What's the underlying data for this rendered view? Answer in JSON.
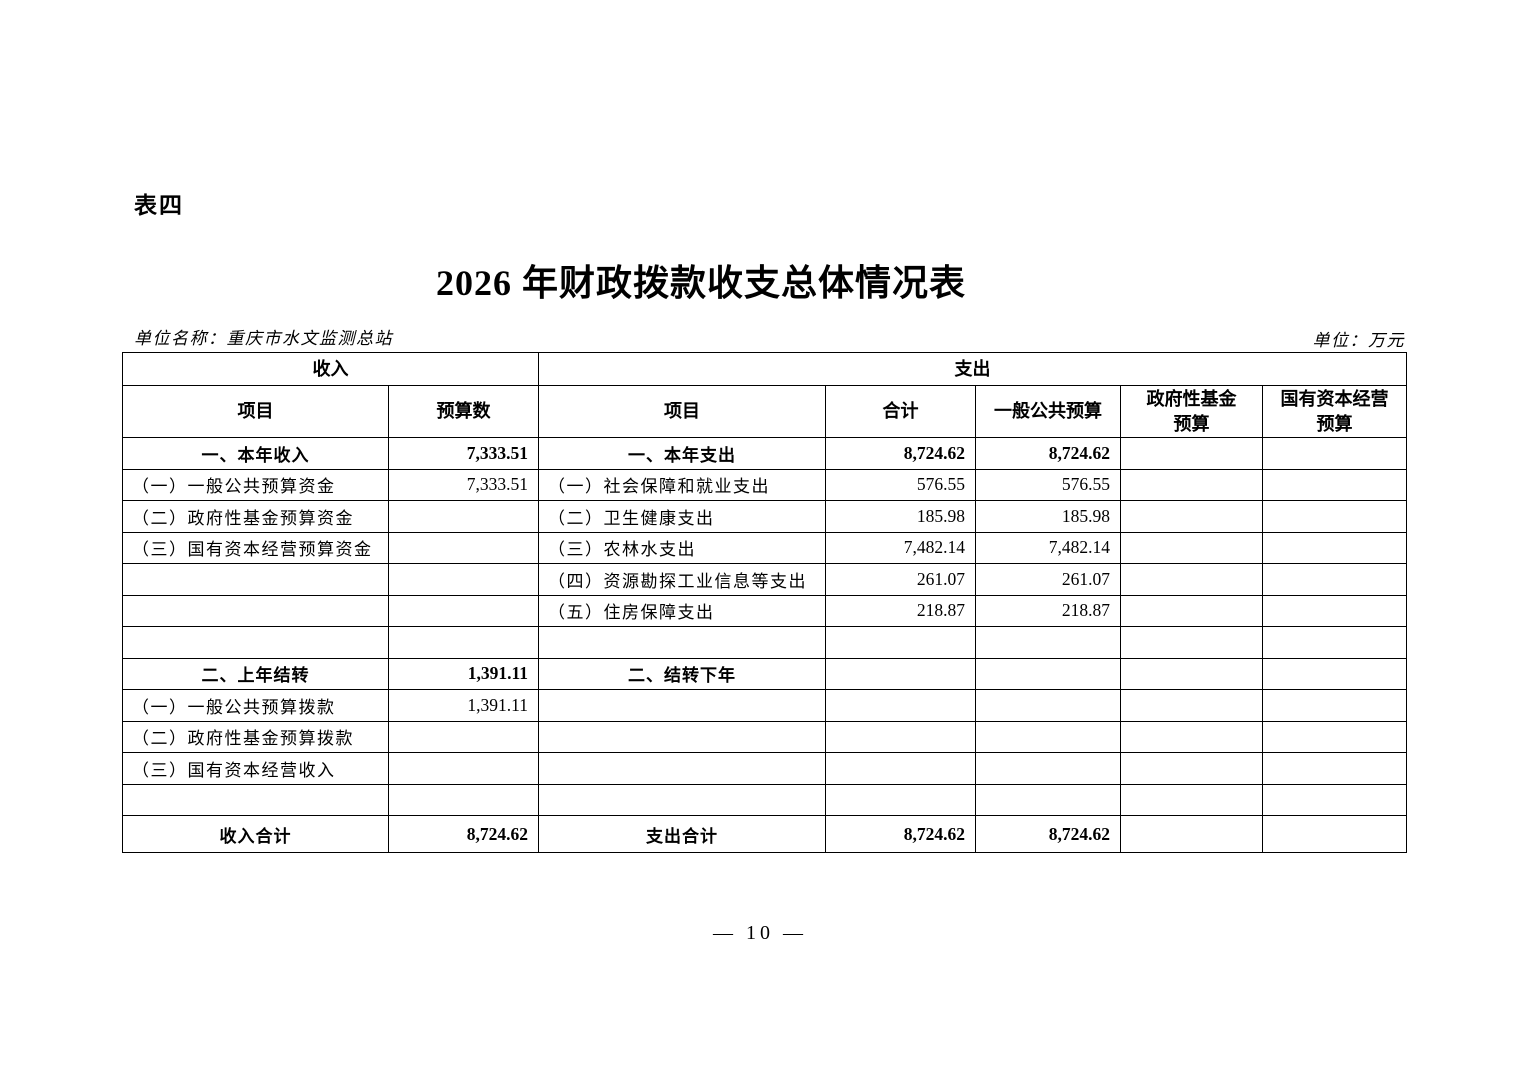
{
  "page": {
    "table_label": "表四",
    "title": "2026 年财政拨款收支总体情况表",
    "unit_name": "单位名称：重庆市水文监测总站",
    "unit": "单位：万元",
    "page_number": "—  10  —"
  },
  "table": {
    "group_headers": {
      "income": "收入",
      "expense": "支出"
    },
    "columns": {
      "income_item": "项目",
      "income_budget": "预算数",
      "expense_item": "项目",
      "expense_total": "合计",
      "general_public_budget": "一般公共预算",
      "gov_fund_budget_line1": "政府性基金",
      "gov_fund_budget_line2": "预算",
      "state_capital_budget_line1": "国有资本经营",
      "state_capital_budget_line2": "预算"
    },
    "rows": [
      {
        "section": true,
        "income_item": "一、本年收入",
        "income_budget": "7,333.51",
        "expense_item": "一、本年支出",
        "expense_total": "8,724.62",
        "general_public": "8,724.62",
        "gov_fund": "",
        "state_capital": ""
      },
      {
        "section": false,
        "income_item": "（一）一般公共预算资金",
        "income_budget": "7,333.51",
        "expense_item": "（一）社会保障和就业支出",
        "expense_total": "576.55",
        "general_public": "576.55",
        "gov_fund": "",
        "state_capital": ""
      },
      {
        "section": false,
        "income_item": "（二）政府性基金预算资金",
        "income_budget": "",
        "expense_item": "（二）卫生健康支出",
        "expense_total": "185.98",
        "general_public": "185.98",
        "gov_fund": "",
        "state_capital": ""
      },
      {
        "section": false,
        "income_item": "（三）国有资本经营预算资金",
        "income_budget": "",
        "expense_item": "（三）农林水支出",
        "expense_total": "7,482.14",
        "general_public": "7,482.14",
        "gov_fund": "",
        "state_capital": ""
      },
      {
        "section": false,
        "income_item": "",
        "income_budget": "",
        "expense_item": "（四）资源勘探工业信息等支出",
        "expense_total": "261.07",
        "general_public": "261.07",
        "gov_fund": "",
        "state_capital": ""
      },
      {
        "section": false,
        "income_item": "",
        "income_budget": "",
        "expense_item": "（五）住房保障支出",
        "expense_total": "218.87",
        "general_public": "218.87",
        "gov_fund": "",
        "state_capital": ""
      },
      {
        "section": false,
        "income_item": "",
        "income_budget": "",
        "expense_item": "",
        "expense_total": "",
        "general_public": "",
        "gov_fund": "",
        "state_capital": ""
      },
      {
        "section": true,
        "income_item": "二、上年结转",
        "income_budget": "1,391.11",
        "expense_item": "二、结转下年",
        "expense_total": "",
        "general_public": "",
        "gov_fund": "",
        "state_capital": ""
      },
      {
        "section": false,
        "income_item": "（一）一般公共预算拨款",
        "income_budget": "1,391.11",
        "expense_item": "",
        "expense_total": "",
        "general_public": "",
        "gov_fund": "",
        "state_capital": ""
      },
      {
        "section": false,
        "income_item": "（二）政府性基金预算拨款",
        "income_budget": "",
        "expense_item": "",
        "expense_total": "",
        "general_public": "",
        "gov_fund": "",
        "state_capital": ""
      },
      {
        "section": false,
        "income_item": "（三）国有资本经营收入",
        "income_budget": "",
        "expense_item": "",
        "expense_total": "",
        "general_public": "",
        "gov_fund": "",
        "state_capital": ""
      },
      {
        "section": false,
        "income_item": "",
        "income_budget": "",
        "expense_item": "",
        "expense_total": "",
        "general_public": "",
        "gov_fund": "",
        "state_capital": ""
      },
      {
        "section": true,
        "income_item": "收入合计",
        "income_budget": "8,724.62",
        "expense_item": "支出合计",
        "expense_total": "8,724.62",
        "general_public": "8,724.62",
        "gov_fund": "",
        "state_capital": ""
      }
    ]
  }
}
